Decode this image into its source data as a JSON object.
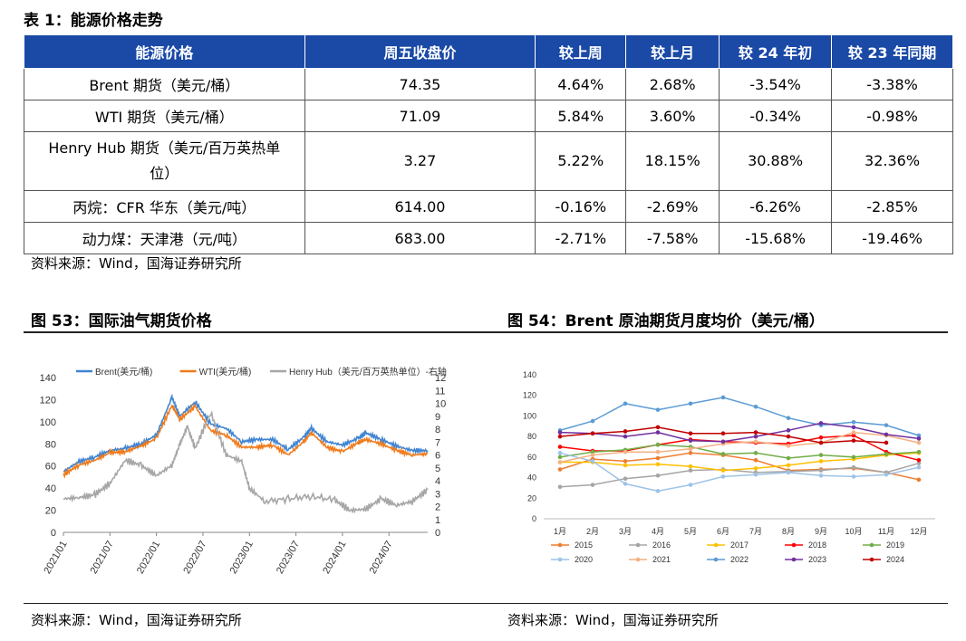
{
  "table": {
    "title": "表 1：能源价格走势",
    "headers": [
      "能源价格",
      "周五收盘价",
      "较上周",
      "较上月",
      "较 24 年初",
      "较 23 年同期"
    ],
    "rows": [
      [
        "Brent 期货（美元/桶）",
        "74.35",
        "4.64%",
        "2.68%",
        "-3.54%",
        "-3.38%"
      ],
      [
        "WTI 期货（美元/桶）",
        "71.09",
        "5.84%",
        "3.60%",
        "-0.34%",
        "-0.98%"
      ],
      [
        "Henry Hub 期货（美元/百万英热单位）",
        "3.27",
        "5.22%",
        "18.15%",
        "30.88%",
        "32.36%"
      ],
      [
        "丙烷：CFR 华东（美元/吨）",
        "614.00",
        "-0.16%",
        "-2.69%",
        "-6.26%",
        "-2.85%"
      ],
      [
        "动力煤：天津港（元/吨）",
        "683.00",
        "-2.71%",
        "-7.58%",
        "-15.68%",
        "-19.46%"
      ]
    ],
    "source": "资料来源：Wind，国海证券研究所"
  },
  "fig53": {
    "title": "图 53：国际油气期货价格",
    "source": "资料来源：Wind，国海证券研究所"
  },
  "fig54": {
    "title": "图 54：Brent 原油期货月度均价（美元/桶）",
    "source": "资料来源：Wind，国海证券研究所"
  },
  "chart_data": [
    {
      "type": "line",
      "left_axis": {
        "ylim": [
          0,
          140
        ],
        "ticks": [
          0,
          20,
          40,
          60,
          80,
          100,
          120,
          140
        ]
      },
      "right_axis": {
        "ylim": [
          0,
          12
        ],
        "ticks": [
          0,
          1,
          2,
          3,
          4,
          5,
          6,
          7,
          8,
          9,
          10,
          11,
          12
        ]
      },
      "x_ticks": [
        "2021/01",
        "2021/07",
        "2022/01",
        "2022/07",
        "2023/01",
        "2023/07",
        "2024/01",
        "2024/07"
      ],
      "x_range": [
        "2021-01",
        "2024-12"
      ],
      "legend_position": "top",
      "series": [
        {
          "name": "Brent(美元/桶)",
          "axis": "left",
          "color": "#3f84d2",
          "x": [
            "2021-01",
            "2021-03",
            "2021-05",
            "2021-07",
            "2021-09",
            "2021-11",
            "2022-01",
            "2022-03",
            "2022-04",
            "2022-06",
            "2022-08",
            "2022-10",
            "2022-12",
            "2023-02",
            "2023-04",
            "2023-06",
            "2023-08",
            "2023-09",
            "2023-11",
            "2024-01",
            "2024-03",
            "2024-04",
            "2024-06",
            "2024-08",
            "2024-10",
            "2024-12"
          ],
          "values": [
            55,
            64,
            68,
            74,
            76,
            80,
            88,
            122,
            105,
            118,
            98,
            94,
            82,
            84,
            84,
            75,
            86,
            94,
            82,
            79,
            85,
            90,
            84,
            78,
            74,
            74
          ]
        },
        {
          "name": "WTI(美元/桶)",
          "axis": "left",
          "color": "#f07a1a",
          "x": [
            "2021-01",
            "2021-03",
            "2021-05",
            "2021-07",
            "2021-09",
            "2021-11",
            "2022-01",
            "2022-03",
            "2022-04",
            "2022-06",
            "2022-08",
            "2022-10",
            "2022-12",
            "2023-02",
            "2023-04",
            "2023-06",
            "2023-08",
            "2023-09",
            "2023-11",
            "2024-01",
            "2024-03",
            "2024-04",
            "2024-06",
            "2024-08",
            "2024-10",
            "2024-12"
          ],
          "values": [
            52,
            61,
            65,
            72,
            73,
            78,
            85,
            115,
            102,
            114,
            92,
            88,
            77,
            77,
            79,
            70,
            82,
            90,
            77,
            73,
            81,
            84,
            80,
            74,
            70,
            71
          ]
        },
        {
          "name": "Henry Hub（美元/百万英热单位）-右轴",
          "axis": "right",
          "color": "#a6a6a6",
          "x": [
            "2021-01",
            "2021-03",
            "2021-05",
            "2021-07",
            "2021-09",
            "2021-11",
            "2022-01",
            "2022-03",
            "2022-04",
            "2022-05",
            "2022-06",
            "2022-08",
            "2022-10",
            "2022-12",
            "2023-01",
            "2023-03",
            "2023-06",
            "2023-09",
            "2023-12",
            "2024-02",
            "2024-04",
            "2024-06",
            "2024-08",
            "2024-10",
            "2024-12"
          ],
          "values": [
            2.6,
            2.7,
            2.9,
            3.8,
            5.6,
            5.2,
            4.4,
            5.2,
            6.8,
            8.2,
            6.5,
            9.3,
            6.0,
            5.5,
            3.4,
            2.4,
            2.6,
            2.8,
            2.5,
            1.7,
            1.8,
            2.6,
            2.1,
            2.4,
            3.3
          ]
        }
      ]
    },
    {
      "type": "line",
      "categories": [
        "1月",
        "2月",
        "3月",
        "4月",
        "5月",
        "6月",
        "7月",
        "8月",
        "9月",
        "10月",
        "11月",
        "12月"
      ],
      "ylim": [
        0,
        140
      ],
      "y_ticks": [
        0,
        20,
        40,
        60,
        80,
        100,
        120,
        140
      ],
      "legend_position": "bottom",
      "series": [
        {
          "name": "2015",
          "color": "#ed7d31",
          "values": [
            48,
            58,
            56,
            59,
            64,
            62,
            57,
            47,
            48,
            49,
            45,
            38
          ]
        },
        {
          "name": "2016",
          "color": "#a5a5a5",
          "values": [
            31,
            33,
            39,
            42,
            47,
            48,
            45,
            46,
            47,
            50,
            45,
            54
          ]
        },
        {
          "name": "2017",
          "color": "#ffc000",
          "values": [
            55,
            55,
            52,
            53,
            51,
            47,
            49,
            52,
            56,
            58,
            62,
            64
          ]
        },
        {
          "name": "2018",
          "color": "#ff0000",
          "values": [
            70,
            66,
            66,
            72,
            77,
            75,
            74,
            73,
            79,
            81,
            65,
            57
          ]
        },
        {
          "name": "2019",
          "color": "#70ad47",
          "values": [
            60,
            65,
            67,
            72,
            70,
            63,
            64,
            59,
            62,
            60,
            63,
            65
          ]
        },
        {
          "name": "2020",
          "color": "#9dc3e6",
          "values": [
            64,
            56,
            34,
            27,
            33,
            41,
            43,
            45,
            42,
            41,
            43,
            50
          ]
        },
        {
          "name": "2021",
          "color": "#f4b183",
          "values": [
            55,
            62,
            65,
            65,
            68,
            73,
            75,
            71,
            74,
            84,
            81,
            74
          ]
        },
        {
          "name": "2022",
          "color": "#5b9bd5",
          "values": [
            86,
            95,
            112,
            106,
            112,
            118,
            109,
            98,
            91,
            94,
            91,
            81
          ]
        },
        {
          "name": "2023",
          "color": "#7030a0",
          "values": [
            84,
            83,
            80,
            84,
            76,
            75,
            80,
            86,
            93,
            89,
            82,
            78
          ]
        },
        {
          "name": "2024",
          "color": "#c00000",
          "values": [
            80,
            83,
            85,
            89,
            83,
            83,
            84,
            80,
            74,
            76,
            74,
            null
          ]
        }
      ]
    }
  ]
}
